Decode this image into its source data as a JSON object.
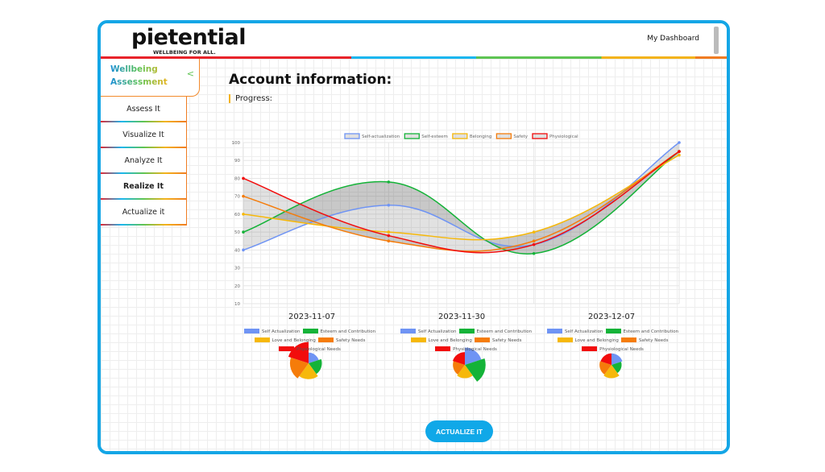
{
  "header": {
    "logo": "pietential",
    "tagline": "WELLBEING FOR ALL.",
    "dashboard_link": "My Dashboard"
  },
  "sidebar": {
    "title_line1": "Wellbeing",
    "title_line2": "Assessment",
    "items": [
      {
        "label": "Assess It"
      },
      {
        "label": "Visualize It"
      },
      {
        "label": "Analyze It"
      },
      {
        "label": "Realize It"
      },
      {
        "label": "Actualize it"
      }
    ]
  },
  "main": {
    "title": "Account information:",
    "progress_label": "Progress:",
    "button": "ACTUALIZE IT"
  },
  "colors": {
    "Self-actualization": "#6f94f4",
    "Self-esteem": "#14b338",
    "Belonging": "#f6b80a",
    "Safety": "#f57c0a",
    "Physiological": "#f20c0c"
  },
  "chart_data": [
    {
      "type": "line",
      "title": "",
      "ylim": [
        10,
        100
      ],
      "yticks": [
        10,
        20,
        30,
        40,
        50,
        60,
        70,
        80,
        90,
        100
      ],
      "legend": "top",
      "x": [
        1,
        2,
        3,
        4
      ],
      "series": [
        {
          "name": "Self-actualization",
          "values": [
            40,
            65,
            43,
            100
          ]
        },
        {
          "name": "Self-esteem",
          "values": [
            50,
            78,
            38,
            95
          ]
        },
        {
          "name": "Belonging",
          "values": [
            60,
            50,
            50,
            93
          ]
        },
        {
          "name": "Safety",
          "values": [
            70,
            45,
            45,
            95
          ]
        },
        {
          "name": "Physiological",
          "values": [
            80,
            48,
            43,
            95
          ]
        }
      ]
    },
    {
      "type": "polarArea",
      "title": "2023-11-07",
      "categories": [
        "Self Actualization",
        "Esteem and Contribution",
        "Love and Belonging",
        "Safety Needs",
        "Physiological Needs"
      ],
      "values": [
        40,
        50,
        60,
        70,
        80
      ]
    },
    {
      "type": "polarArea",
      "title": "2023-11-30",
      "categories": [
        "Self Actualization",
        "Esteem and Contribution",
        "Love and Belonging",
        "Safety Needs",
        "Physiological Needs"
      ],
      "values": [
        65,
        78,
        50,
        45,
        48
      ]
    },
    {
      "type": "polarArea",
      "title": "2023-12-07",
      "categories": [
        "Self Actualization",
        "Esteem and Contribution",
        "Love and Belonging",
        "Safety Needs",
        "Physiological Needs"
      ],
      "values": [
        43,
        38,
        50,
        45,
        43
      ]
    }
  ]
}
